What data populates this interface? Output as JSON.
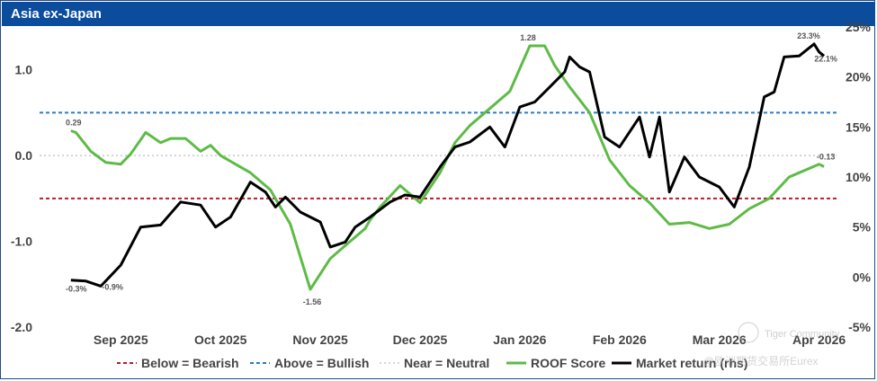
{
  "chart_data": {
    "type": "line",
    "title": "Asia ex-Japan",
    "x_tick_labels": [
      "Sep 2025",
      "Oct 2025",
      "Nov 2025",
      "Dec 2025",
      "Jan 2026",
      "Feb 2026",
      "Mar 2026",
      "Apr 2026"
    ],
    "left_axis": {
      "ylim": [
        -2.0,
        1.5
      ],
      "tick_labels": [
        "1.0",
        "0.0",
        "-1.0",
        "-2.0"
      ],
      "tick_values": [
        1.0,
        0.0,
        -1.0,
        -2.0
      ]
    },
    "right_axis": {
      "ylim": [
        -5,
        25
      ],
      "tick_labels": [
        "25%",
        "20%",
        "15%",
        "10%",
        "5%",
        "0%",
        "-5%"
      ],
      "tick_values": [
        25,
        20,
        15,
        10,
        5,
        0,
        -5
      ]
    },
    "reference_lines": [
      {
        "name": "Below = Bearish",
        "value": -0.5,
        "color": "#c0182c",
        "style": "dashed"
      },
      {
        "name": "Above = Bullish",
        "value": 0.5,
        "color": "#2c7bc4",
        "style": "dashed"
      },
      {
        "name": "Near = Neutral",
        "value": 0.0,
        "color": "#bdbdbd",
        "style": "dotted"
      }
    ],
    "series": [
      {
        "name": "ROOF Score",
        "axis": "left",
        "color": "#5dbb46",
        "t": [
          0,
          0.05,
          0.2,
          0.35,
          0.5,
          0.6,
          0.75,
          0.9,
          1.0,
          1.15,
          1.3,
          1.4,
          1.5,
          1.65,
          1.8,
          2.0,
          2.2,
          2.4,
          2.6,
          2.8,
          2.95,
          3.0,
          3.1,
          3.3,
          3.5,
          3.7,
          3.85,
          4.0,
          4.2,
          4.4,
          4.6,
          4.75,
          4.85,
          5.0,
          5.2,
          5.4,
          5.6,
          5.8,
          6.0,
          6.2,
          6.4,
          6.6,
          6.8,
          7.0,
          7.2,
          7.4,
          7.5,
          7.55
        ],
        "values": [
          0.29,
          0.27,
          0.05,
          -0.08,
          -0.1,
          0.02,
          0.27,
          0.15,
          0.2,
          0.2,
          0.05,
          0.12,
          0.0,
          -0.1,
          -0.2,
          -0.4,
          -0.8,
          -1.56,
          -1.2,
          -1.0,
          -0.85,
          -0.75,
          -0.6,
          -0.35,
          -0.55,
          -0.2,
          0.15,
          0.35,
          0.55,
          0.75,
          1.28,
          1.28,
          1.05,
          0.8,
          0.5,
          -0.05,
          -0.35,
          -0.55,
          -0.8,
          -0.78,
          -0.85,
          -0.8,
          -0.62,
          -0.5,
          -0.25,
          -0.15,
          -0.1,
          -0.13
        ],
        "start_label": "0.29",
        "peak_label": "1.28",
        "min_label": "-1.56",
        "end_label": "-0.13"
      },
      {
        "name": "Market return (rhs)",
        "axis": "right",
        "color": "#000000",
        "t": [
          0,
          0.15,
          0.3,
          0.5,
          0.7,
          0.9,
          1.1,
          1.3,
          1.45,
          1.6,
          1.8,
          1.95,
          2.05,
          2.15,
          2.3,
          2.5,
          2.6,
          2.75,
          2.85,
          3.0,
          3.2,
          3.35,
          3.5,
          3.7,
          3.85,
          4.0,
          4.2,
          4.35,
          4.5,
          4.65,
          4.8,
          4.95,
          5.0,
          5.1,
          5.2,
          5.35,
          5.5,
          5.7,
          5.8,
          5.9,
          6.0,
          6.15,
          6.3,
          6.5,
          6.65,
          6.8,
          6.95,
          7.05,
          7.15,
          7.3,
          7.45,
          7.5,
          7.55
        ],
        "values": [
          -0.3,
          -0.4,
          -0.9,
          1.2,
          5.0,
          5.2,
          7.5,
          7.2,
          5.0,
          6.0,
          9.5,
          8.5,
          7.0,
          8.0,
          6.5,
          5.5,
          3.0,
          3.5,
          5.0,
          6.0,
          7.5,
          8.2,
          8.0,
          11.0,
          13.0,
          13.5,
          15.0,
          13.0,
          17.0,
          17.5,
          19.0,
          20.5,
          22.0,
          21.0,
          20.5,
          14.0,
          13.0,
          16.0,
          12.0,
          16.0,
          8.5,
          12.0,
          10.0,
          9.0,
          7.0,
          11.0,
          18.0,
          18.5,
          22.0,
          22.1,
          23.3,
          22.5,
          22.1
        ],
        "start_labels": [
          "-0.3%",
          "-0.9%"
        ],
        "end_labels": [
          "23.3%",
          "22.1%"
        ]
      }
    ],
    "legend_position": "bottom"
  },
  "watermark": {
    "line1": "Tiger Community",
    "line2": "@欧洲期货交易所Eurex"
  }
}
